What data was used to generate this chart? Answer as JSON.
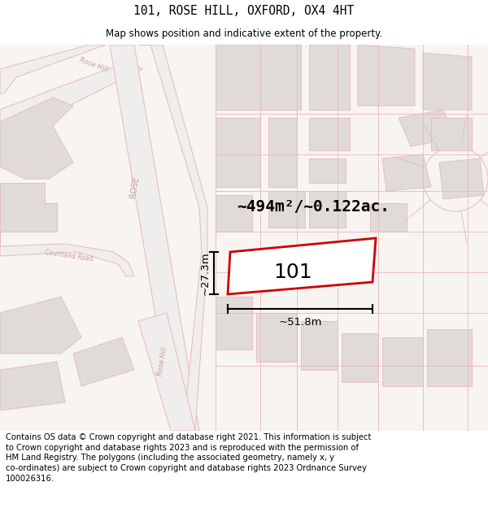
{
  "title": "101, ROSE HILL, OXFORD, OX4 4HT",
  "subtitle": "Map shows position and indicative extent of the property.",
  "footer": "Contains OS data © Crown copyright and database right 2021. This information is subject\nto Crown copyright and database rights 2023 and is reproduced with the permission of\nHM Land Registry. The polygons (including the associated geometry, namely x, y\nco-ordinates) are subject to Crown copyright and database rights 2023 Ordnance Survey\n100026316.",
  "area_text": "~494m²/~0.122ac.",
  "width_text": "~51.8m",
  "height_text": "~27.3m",
  "label_101": "101",
  "map_bg": "#f7f4f2",
  "road_line": "#e8b8b8",
  "road_fill": "#ffffff",
  "block_fill": "#e0dbd8",
  "block_line": "#e8b8b8",
  "prop_line": "#cc0000",
  "prop_fill": "#ffffff",
  "dim_color": "#000000",
  "road_label_color": "#c8a0a0",
  "title_fontsize": 10.5,
  "subtitle_fontsize": 8.5,
  "footer_fontsize": 7.2,
  "label_fontsize": 18,
  "area_fontsize": 14,
  "dim_fontsize": 9.5
}
